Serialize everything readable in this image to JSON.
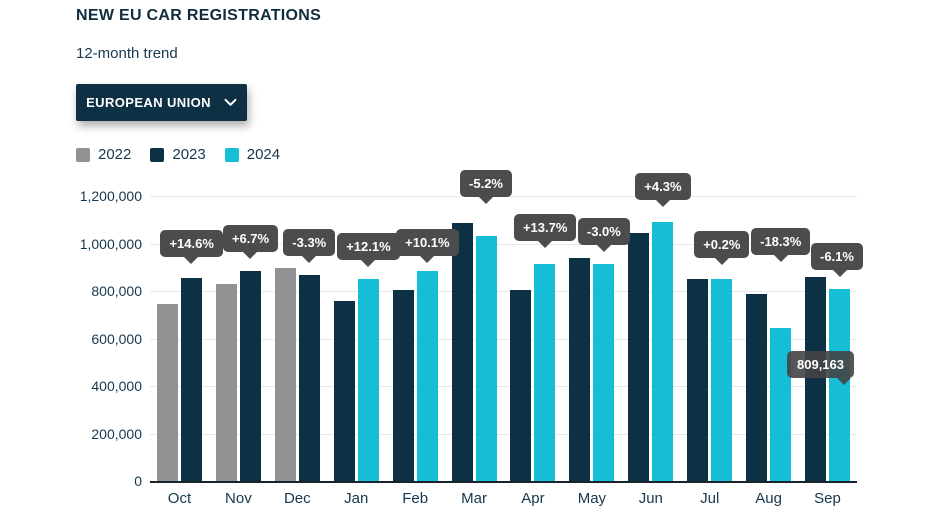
{
  "header": {
    "title": "NEW EU CAR REGISTRATIONS",
    "subtitle": "12-month trend"
  },
  "region_selector": {
    "label": "EUROPEAN UNION",
    "chevron_icon": "chevron-down"
  },
  "legend": {
    "items": [
      {
        "label": "2022",
        "color": "#909294"
      },
      {
        "label": "2023",
        "color": "#0c3044"
      },
      {
        "label": "2024",
        "color": "#16bdd6"
      }
    ]
  },
  "chart_data": {
    "type": "bar",
    "title": "NEW EU CAR REGISTRATIONS",
    "subtitle": "12-month trend",
    "categories": [
      "Oct",
      "Nov",
      "Dec",
      "Jan",
      "Feb",
      "Mar",
      "Apr",
      "May",
      "Jun",
      "Jul",
      "Aug",
      "Sep"
    ],
    "series": [
      {
        "name": "2022",
        "color": "#909294",
        "values": [
          746000,
          830000,
          897000,
          null,
          null,
          null,
          null,
          null,
          null,
          null,
          null,
          null
        ]
      },
      {
        "name": "2023",
        "color": "#0c3044",
        "values": [
          855000,
          886000,
          867000,
          760000,
          803000,
          1088000,
          804000,
          940000,
          1045000,
          850000,
          788000,
          861000
        ]
      },
      {
        "name": "2024",
        "color": "#16bdd6",
        "values": [
          null,
          null,
          null,
          852000,
          884000,
          1032000,
          914000,
          912000,
          1090000,
          852000,
          644000,
          809163
        ]
      }
    ],
    "pct_change_labels": [
      "+14.6%",
      "+6.7%",
      "-3.3%",
      "+12.1%",
      "+10.1%",
      "-5.2%",
      "+13.7%",
      "-3.0%",
      "+4.3%",
      "+0.2%",
      "-18.3%",
      "-6.1%"
    ],
    "hover_value_tooltip": {
      "text": "809,163",
      "category": "Sep",
      "series": "2024"
    },
    "yticks": [
      0,
      200000,
      400000,
      600000,
      800000,
      1000000,
      1200000
    ],
    "ytick_labels": [
      "0",
      "200,000",
      "400,000",
      "600,000",
      "800,000",
      "1,000,000",
      "1,200,000"
    ],
    "ylim": [
      0,
      1200000
    ],
    "xlabel": "",
    "ylabel": "",
    "grid": true,
    "legend_position": "top-left"
  },
  "colors": {
    "accent_navy": "#0c3044",
    "accent_cyan": "#16bdd6",
    "bar_gray": "#909294",
    "tooltip_bg": "#4c4c4e",
    "grid_line": "#e7e7e7",
    "text": "#16374c"
  }
}
